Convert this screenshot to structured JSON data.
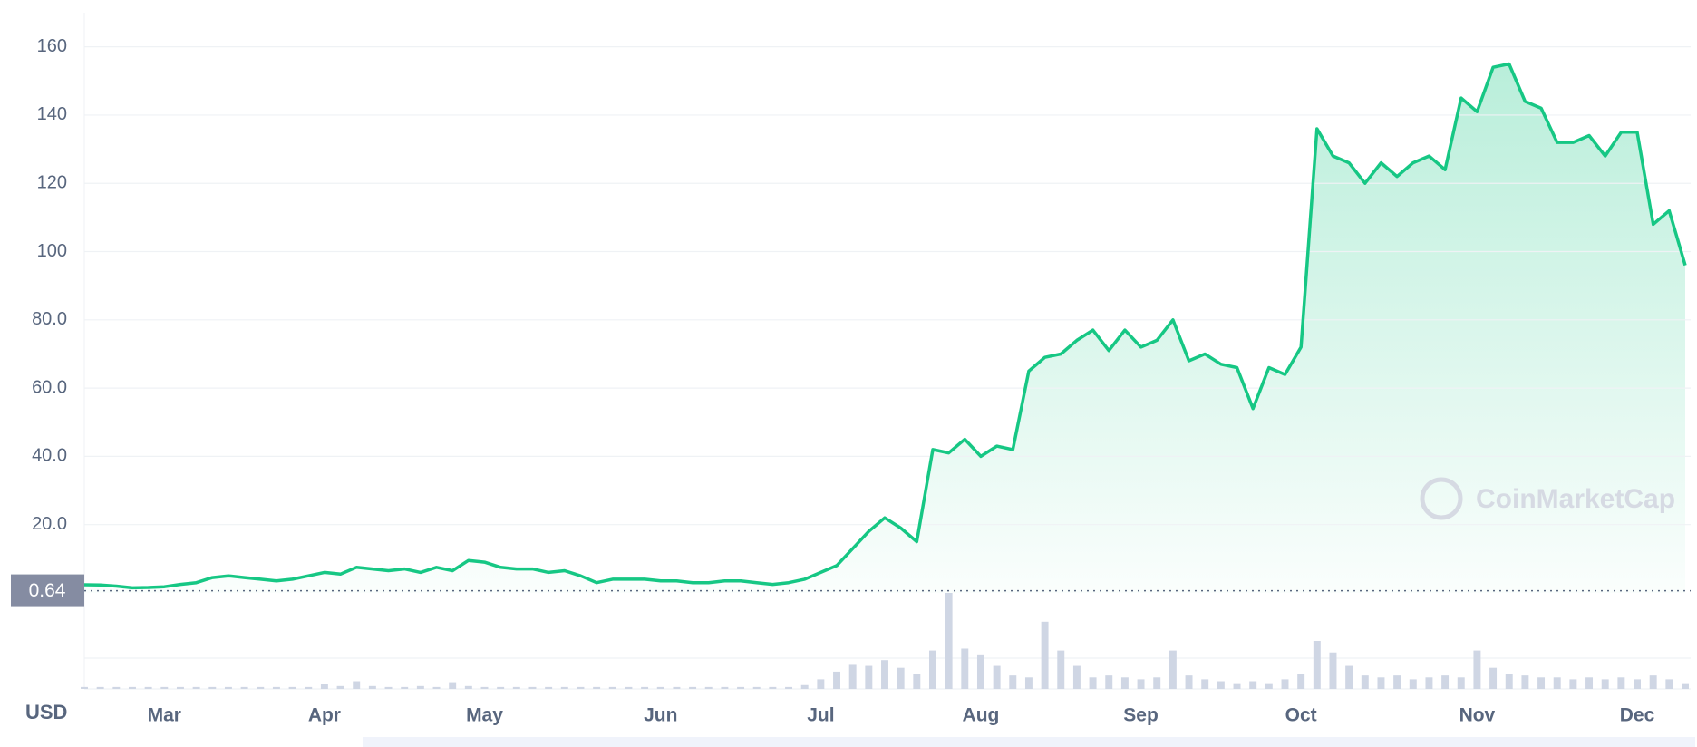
{
  "chart_data": {
    "type": "line",
    "currency": "USD",
    "watermark": "CoinMarketCap",
    "current_price": 0.64,
    "categories": [
      null,
      null,
      null,
      null,
      null,
      "Mar",
      null,
      null,
      null,
      null,
      null,
      null,
      null,
      null,
      null,
      "Apr",
      null,
      null,
      null,
      null,
      null,
      null,
      null,
      null,
      null,
      "May",
      null,
      null,
      null,
      null,
      null,
      null,
      null,
      null,
      null,
      null,
      "Jun",
      null,
      null,
      null,
      null,
      null,
      null,
      null,
      null,
      null,
      "Jul",
      null,
      null,
      null,
      null,
      null,
      null,
      null,
      null,
      null,
      "Aug",
      null,
      null,
      null,
      null,
      null,
      null,
      null,
      null,
      null,
      "Sep",
      null,
      null,
      null,
      null,
      null,
      null,
      null,
      null,
      null,
      "Oct",
      null,
      null,
      null,
      null,
      null,
      null,
      null,
      null,
      null,
      null,
      "Nov",
      null,
      null,
      null,
      null,
      null,
      null,
      null,
      null,
      null,
      "Dec",
      null,
      null,
      null
    ],
    "series": [
      {
        "color": "#16c784",
        "values": [
          2.4,
          2.3,
          2.0,
          1.5,
          1.6,
          1.8,
          2.5,
          3.0,
          4.5,
          5.0,
          4.5,
          4.0,
          3.5,
          4.0,
          5.0,
          6.0,
          5.5,
          7.5,
          7.0,
          6.5,
          7.0,
          6.0,
          7.5,
          6.5,
          9.5,
          9.0,
          7.5,
          7.0,
          7.0,
          6.0,
          6.5,
          5.0,
          3.0,
          4.0,
          4.0,
          4.0,
          3.5,
          3.5,
          3.0,
          3.0,
          3.5,
          3.5,
          3.0,
          2.5,
          3.0,
          4.0,
          6.0,
          8.0,
          13,
          18,
          22,
          19,
          15,
          42,
          41,
          45,
          40,
          43,
          42,
          65,
          69,
          70,
          74,
          77,
          71,
          77,
          72,
          74,
          80,
          68,
          70,
          67,
          66,
          54,
          66,
          64,
          72,
          136,
          128,
          126,
          120,
          126,
          122,
          126,
          128,
          124,
          145,
          141,
          154,
          155,
          144,
          142,
          132,
          132,
          134,
          128,
          135,
          135,
          108,
          112,
          96
        ]
      },
      {
        "color": "#cfd6e4",
        "axis": "y2",
        "values": [
          2,
          2,
          2,
          2,
          2,
          2,
          2,
          2,
          2,
          2,
          2,
          2,
          2,
          2,
          2,
          5,
          3,
          8,
          3,
          2,
          2,
          3,
          2,
          7,
          3,
          2,
          2,
          2,
          2,
          2,
          2,
          2,
          2,
          2,
          2,
          2,
          2,
          2,
          2,
          2,
          2,
          2,
          2,
          2,
          2,
          4,
          10,
          18,
          26,
          24,
          30,
          22,
          16,
          40,
          100,
          42,
          36,
          24,
          14,
          12,
          70,
          40,
          24,
          12,
          14,
          12,
          10,
          12,
          40,
          14,
          10,
          8,
          6,
          8,
          6,
          10,
          16,
          50,
          38,
          24,
          14,
          12,
          14,
          10,
          12,
          14,
          12,
          40,
          22,
          16,
          14,
          12,
          12,
          10,
          12,
          10,
          12,
          10,
          14,
          10,
          6
        ]
      }
    ],
    "ylim": [
      0,
      170
    ],
    "y2lim": [
      0,
      100
    ],
    "yticks": [
      {
        "value": 20,
        "label": "20.0"
      },
      {
        "value": 40,
        "label": "40.0"
      },
      {
        "value": 60,
        "label": "60.0"
      },
      {
        "value": 80,
        "label": "80.0"
      },
      100,
      120,
      140,
      160
    ],
    "grid": true
  }
}
